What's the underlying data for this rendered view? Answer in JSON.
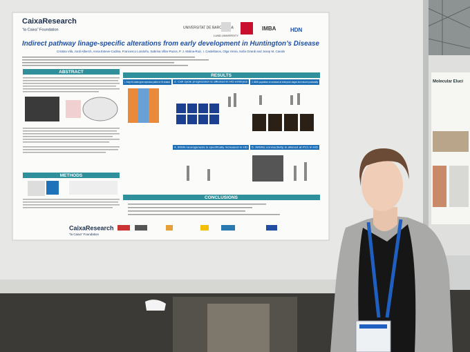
{
  "poster": {
    "header": {
      "brand": "CaixaResearch",
      "foundation": "“la Caixa” Foundation",
      "logos": [
        "UNIVERSITAT DE BARCELONA",
        "LUND UNIVERSITY",
        "IMBA",
        "HDN"
      ]
    },
    "title": "Indirect pathway linage-specific alterations from early development in Huntington’s Disease",
    "authors": "Cristina Vilà, Jordi Alberch, Anna Esteve-Codina, Francesco Londoño, Sabrina Villar-Pazos, P. J. Molina-Ruiz, I. Castellanos, Olga Vieira, Sofia Girardi and Josep M. Canals",
    "sections": {
      "abstract": "ABSTRACT",
      "results": "RESULTS",
      "methods": "METHODS",
      "conclusions": "CONCLUSIONS"
    },
    "panels": [
      "1. Early HD-related gene expression pattern in HD striatum",
      "2. Cell cycle progression is affected in HD embryos",
      "3. iMSN population is increased at embryonic stages but reduced postnatally",
      "4. iMSN neurogenesis is specifically increased in HD",
      "5. iMSNs connectivity is altered at P21 in HD"
    ],
    "footer": {
      "brand": "CaixaResearch",
      "foundation": "“la Caixa” Foundation"
    }
  },
  "neighbor_poster": {
    "title": "Molecular Eluci"
  }
}
